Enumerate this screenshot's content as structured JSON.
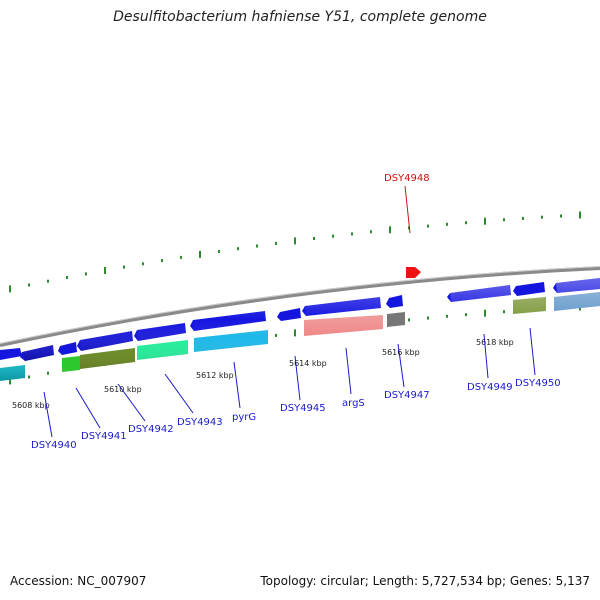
{
  "title": "Desulfitobacterium hafniense Y51, complete genome",
  "footer": {
    "accession": "Accession: NC_007907",
    "summary": "Topology: circular; Length: 5,727,534 bp; Genes: 5,137"
  },
  "colors": {
    "backbone": "#8a8a8a",
    "tick": "#2d8a2d",
    "label_blue": "#1a1acc",
    "label_red": "#cc1111",
    "forward_arrow": "#1515e0",
    "highlight_arrow": "#ee1111"
  },
  "scale_labels": [
    "5608 kbp",
    "5610 kbp",
    "5612 kbp",
    "5614 kbp",
    "5616 kbp",
    "5618 kbp"
  ],
  "gene_labels": [
    {
      "text": "DSY4940",
      "highlight": false
    },
    {
      "text": "DSY4941",
      "highlight": false
    },
    {
      "text": "DSY4942",
      "highlight": false
    },
    {
      "text": "DSY4943",
      "highlight": false
    },
    {
      "text": "pyrG",
      "highlight": false
    },
    {
      "text": "DSY4945",
      "highlight": false
    },
    {
      "text": "argS",
      "highlight": false
    },
    {
      "text": "DSY4947",
      "highlight": false
    },
    {
      "text": "DSY4948",
      "highlight": true
    },
    {
      "text": "DSY4949",
      "highlight": false
    },
    {
      "text": "DSY4950",
      "highlight": false
    }
  ],
  "feature_colors": {
    "cds": "#1515e0",
    "cyan": "#10c8d8",
    "green": "#2ec82e",
    "olive": "#6a8a20",
    "mint": "#22ee99",
    "sky": "#1eb8e8",
    "salmon": "#ee8888",
    "gray": "#777777",
    "steel": "#4a88c0",
    "red": "#ee1111"
  }
}
